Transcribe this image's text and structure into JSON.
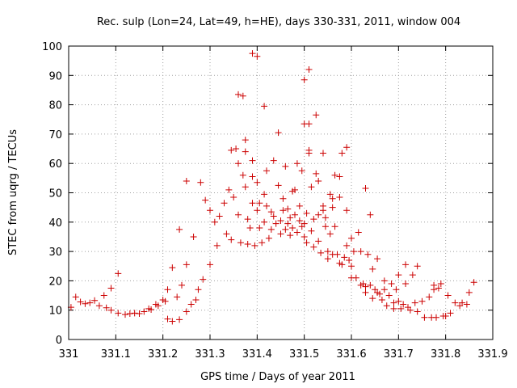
{
  "chart_data": {
    "type": "scatter",
    "title": "Rec. sulp (Lon=24, Lat=49, h=HE), days 330-331, 2011, window 004",
    "xlabel": "GPS time / Days of year 2011",
    "ylabel": "STEC from uqrg / TECUs",
    "xlim": [
      331,
      331.9
    ],
    "ylim": [
      0,
      100
    ],
    "xticks": [
      331,
      331.1,
      331.2,
      331.3,
      331.4,
      331.5,
      331.6,
      331.7,
      331.8,
      331.9
    ],
    "xtick_labels": [
      "331",
      "331.1",
      "331.2",
      "331.3",
      "331.4",
      "331.5",
      "331.6",
      "331.7",
      "331.8",
      "331.9"
    ],
    "yticks": [
      0,
      10,
      20,
      30,
      40,
      50,
      60,
      70,
      80,
      90,
      100
    ],
    "ytick_labels": [
      "0",
      "10",
      "20",
      "30",
      "40",
      "50",
      "60",
      "70",
      "80",
      "90",
      "100"
    ],
    "grid": true,
    "marker": "+",
    "color": "#cc0000",
    "points": [
      [
        331.005,
        11.0
      ],
      [
        331.015,
        14.5
      ],
      [
        331.025,
        12.8
      ],
      [
        331.035,
        12.2
      ],
      [
        331.045,
        12.5
      ],
      [
        331.055,
        13.3
      ],
      [
        331.065,
        11.5
      ],
      [
        331.075,
        15.0
      ],
      [
        331.08,
        10.8
      ],
      [
        331.09,
        17.5
      ],
      [
        331.09,
        10.0
      ],
      [
        331.105,
        22.5
      ],
      [
        331.105,
        9.0
      ],
      [
        331.12,
        8.5
      ],
      [
        331.13,
        8.8
      ],
      [
        331.14,
        9.0
      ],
      [
        331.15,
        8.8
      ],
      [
        331.16,
        9.5
      ],
      [
        331.17,
        10.5
      ],
      [
        331.175,
        10.2
      ],
      [
        331.185,
        12.0
      ],
      [
        331.19,
        11.5
      ],
      [
        331.2,
        13.5
      ],
      [
        331.205,
        13.0
      ],
      [
        331.21,
        17.0
      ],
      [
        331.21,
        7.0
      ],
      [
        331.22,
        24.5
      ],
      [
        331.22,
        6.2
      ],
      [
        331.23,
        14.5
      ],
      [
        331.235,
        6.8
      ],
      [
        331.235,
        37.5
      ],
      [
        331.24,
        18.5
      ],
      [
        331.25,
        25.5
      ],
      [
        331.25,
        9.5
      ],
      [
        331.25,
        54.0
      ],
      [
        331.26,
        12.0
      ],
      [
        331.265,
        35.0
      ],
      [
        331.27,
        13.5
      ],
      [
        331.275,
        17.0
      ],
      [
        331.28,
        53.5
      ],
      [
        331.285,
        20.5
      ],
      [
        331.29,
        47.5
      ],
      [
        331.3,
        44.0
      ],
      [
        331.3,
        25.5
      ],
      [
        331.31,
        40.0
      ],
      [
        331.315,
        32.0
      ],
      [
        331.32,
        42.0
      ],
      [
        331.33,
        46.5
      ],
      [
        331.335,
        36.0
      ],
      [
        331.34,
        51.0
      ],
      [
        331.345,
        34.0
      ],
      [
        331.345,
        64.5
      ],
      [
        331.35,
        48.5
      ],
      [
        331.355,
        65.0
      ],
      [
        331.36,
        83.5
      ],
      [
        331.36,
        60.0
      ],
      [
        331.36,
        42.5
      ],
      [
        331.365,
        33.0
      ],
      [
        331.37,
        56.0
      ],
      [
        331.37,
        83.0
      ],
      [
        331.375,
        52.0
      ],
      [
        331.375,
        64.0
      ],
      [
        331.375,
        68.0
      ],
      [
        331.38,
        41.0
      ],
      [
        331.38,
        32.5
      ],
      [
        331.385,
        38.0
      ],
      [
        331.39,
        97.5
      ],
      [
        331.39,
        46.5
      ],
      [
        331.39,
        55.5
      ],
      [
        331.39,
        61.0
      ],
      [
        331.395,
        32.0
      ],
      [
        331.4,
        96.5
      ],
      [
        331.4,
        44.0
      ],
      [
        331.4,
        53.5
      ],
      [
        331.405,
        46.5
      ],
      [
        331.405,
        38.0
      ],
      [
        331.41,
        33.0
      ],
      [
        331.415,
        79.5
      ],
      [
        331.415,
        49.5
      ],
      [
        331.415,
        40.0
      ],
      [
        331.42,
        57.5
      ],
      [
        331.42,
        45.5
      ],
      [
        331.425,
        34.5
      ],
      [
        331.43,
        43.5
      ],
      [
        331.43,
        37.5
      ],
      [
        331.435,
        61.0
      ],
      [
        331.435,
        42.0
      ],
      [
        331.44,
        39.5
      ],
      [
        331.445,
        70.5
      ],
      [
        331.445,
        52.5
      ],
      [
        331.45,
        36.0
      ],
      [
        331.45,
        40.5
      ],
      [
        331.455,
        48.0
      ],
      [
        331.455,
        44.0
      ],
      [
        331.46,
        59.0
      ],
      [
        331.46,
        37.5
      ],
      [
        331.465,
        44.5
      ],
      [
        331.465,
        39.5
      ],
      [
        331.47,
        35.5
      ],
      [
        331.47,
        41.5
      ],
      [
        331.475,
        50.5
      ],
      [
        331.475,
        38.0
      ],
      [
        331.48,
        51.0
      ],
      [
        331.48,
        42.5
      ],
      [
        331.485,
        60.0
      ],
      [
        331.485,
        36.5
      ],
      [
        331.49,
        40.5
      ],
      [
        331.49,
        45.5
      ],
      [
        331.495,
        57.5
      ],
      [
        331.495,
        38.5
      ],
      [
        331.5,
        88.5
      ],
      [
        331.5,
        73.5
      ],
      [
        331.5,
        35.0
      ],
      [
        331.5,
        39.5
      ],
      [
        331.505,
        43.0
      ],
      [
        331.505,
        33.0
      ],
      [
        331.51,
        92.0
      ],
      [
        331.51,
        73.5
      ],
      [
        331.51,
        64.5
      ],
      [
        331.51,
        63.5
      ],
      [
        331.515,
        52.0
      ],
      [
        331.515,
        37.0
      ],
      [
        331.52,
        41.0
      ],
      [
        331.52,
        31.5
      ],
      [
        331.525,
        76.5
      ],
      [
        331.525,
        56.5
      ],
      [
        331.53,
        54.0
      ],
      [
        331.53,
        42.5
      ],
      [
        331.53,
        33.5
      ],
      [
        331.535,
        29.5
      ],
      [
        331.54,
        63.5
      ],
      [
        331.54,
        44.0
      ],
      [
        331.54,
        45.5
      ],
      [
        331.545,
        38.5
      ],
      [
        331.545,
        41.5
      ],
      [
        331.55,
        30.0
      ],
      [
        331.55,
        27.5
      ],
      [
        331.555,
        49.5
      ],
      [
        331.555,
        36.0
      ],
      [
        331.56,
        48.0
      ],
      [
        331.56,
        45.0
      ],
      [
        331.56,
        29.0
      ],
      [
        331.565,
        56.0
      ],
      [
        331.565,
        38.5
      ],
      [
        331.57,
        29.0
      ],
      [
        331.575,
        48.5
      ],
      [
        331.575,
        55.5
      ],
      [
        331.575,
        26.0
      ],
      [
        331.58,
        63.5
      ],
      [
        331.58,
        25.5
      ],
      [
        331.585,
        28.0
      ],
      [
        331.59,
        65.5
      ],
      [
        331.59,
        44.0
      ],
      [
        331.59,
        32.0
      ],
      [
        331.595,
        27.0
      ],
      [
        331.6,
        34.5
      ],
      [
        331.6,
        25.0
      ],
      [
        331.6,
        21.0
      ],
      [
        331.605,
        30.0
      ],
      [
        331.61,
        21.0
      ],
      [
        331.615,
        36.5
      ],
      [
        331.62,
        18.5
      ],
      [
        331.62,
        30.0
      ],
      [
        331.625,
        19.0
      ],
      [
        331.63,
        18.0
      ],
      [
        331.63,
        51.5
      ],
      [
        331.63,
        16.0
      ],
      [
        331.635,
        29.0
      ],
      [
        331.64,
        18.5
      ],
      [
        331.64,
        42.5
      ],
      [
        331.645,
        14.0
      ],
      [
        331.645,
        24.0
      ],
      [
        331.65,
        17.0
      ],
      [
        331.655,
        16.0
      ],
      [
        331.655,
        27.5
      ],
      [
        331.66,
        15.5
      ],
      [
        331.665,
        13.5
      ],
      [
        331.67,
        20.0
      ],
      [
        331.67,
        17.0
      ],
      [
        331.675,
        11.5
      ],
      [
        331.68,
        15.0
      ],
      [
        331.685,
        19.0
      ],
      [
        331.69,
        12.5
      ],
      [
        331.69,
        10.5
      ],
      [
        331.695,
        17.0
      ],
      [
        331.7,
        22.0
      ],
      [
        331.7,
        13.0
      ],
      [
        331.705,
        10.5
      ],
      [
        331.71,
        12.0
      ],
      [
        331.715,
        25.5
      ],
      [
        331.715,
        19.0
      ],
      [
        331.72,
        11.0
      ],
      [
        331.725,
        10.0
      ],
      [
        331.73,
        22.0
      ],
      [
        331.735,
        12.5
      ],
      [
        331.74,
        25.0
      ],
      [
        331.74,
        9.5
      ],
      [
        331.75,
        13.0
      ],
      [
        331.755,
        7.5
      ],
      [
        331.765,
        14.5
      ],
      [
        331.77,
        7.5
      ],
      [
        331.775,
        17.0
      ],
      [
        331.775,
        18.5
      ],
      [
        331.78,
        7.5
      ],
      [
        331.785,
        17.5
      ],
      [
        331.79,
        19.0
      ],
      [
        331.795,
        8.0
      ],
      [
        331.8,
        8.0
      ],
      [
        331.805,
        15.0
      ],
      [
        331.81,
        9.0
      ],
      [
        331.82,
        12.5
      ],
      [
        331.83,
        11.5
      ],
      [
        331.835,
        12.5
      ],
      [
        331.845,
        12.0
      ],
      [
        331.85,
        16.0
      ],
      [
        331.86,
        19.5
      ]
    ]
  }
}
